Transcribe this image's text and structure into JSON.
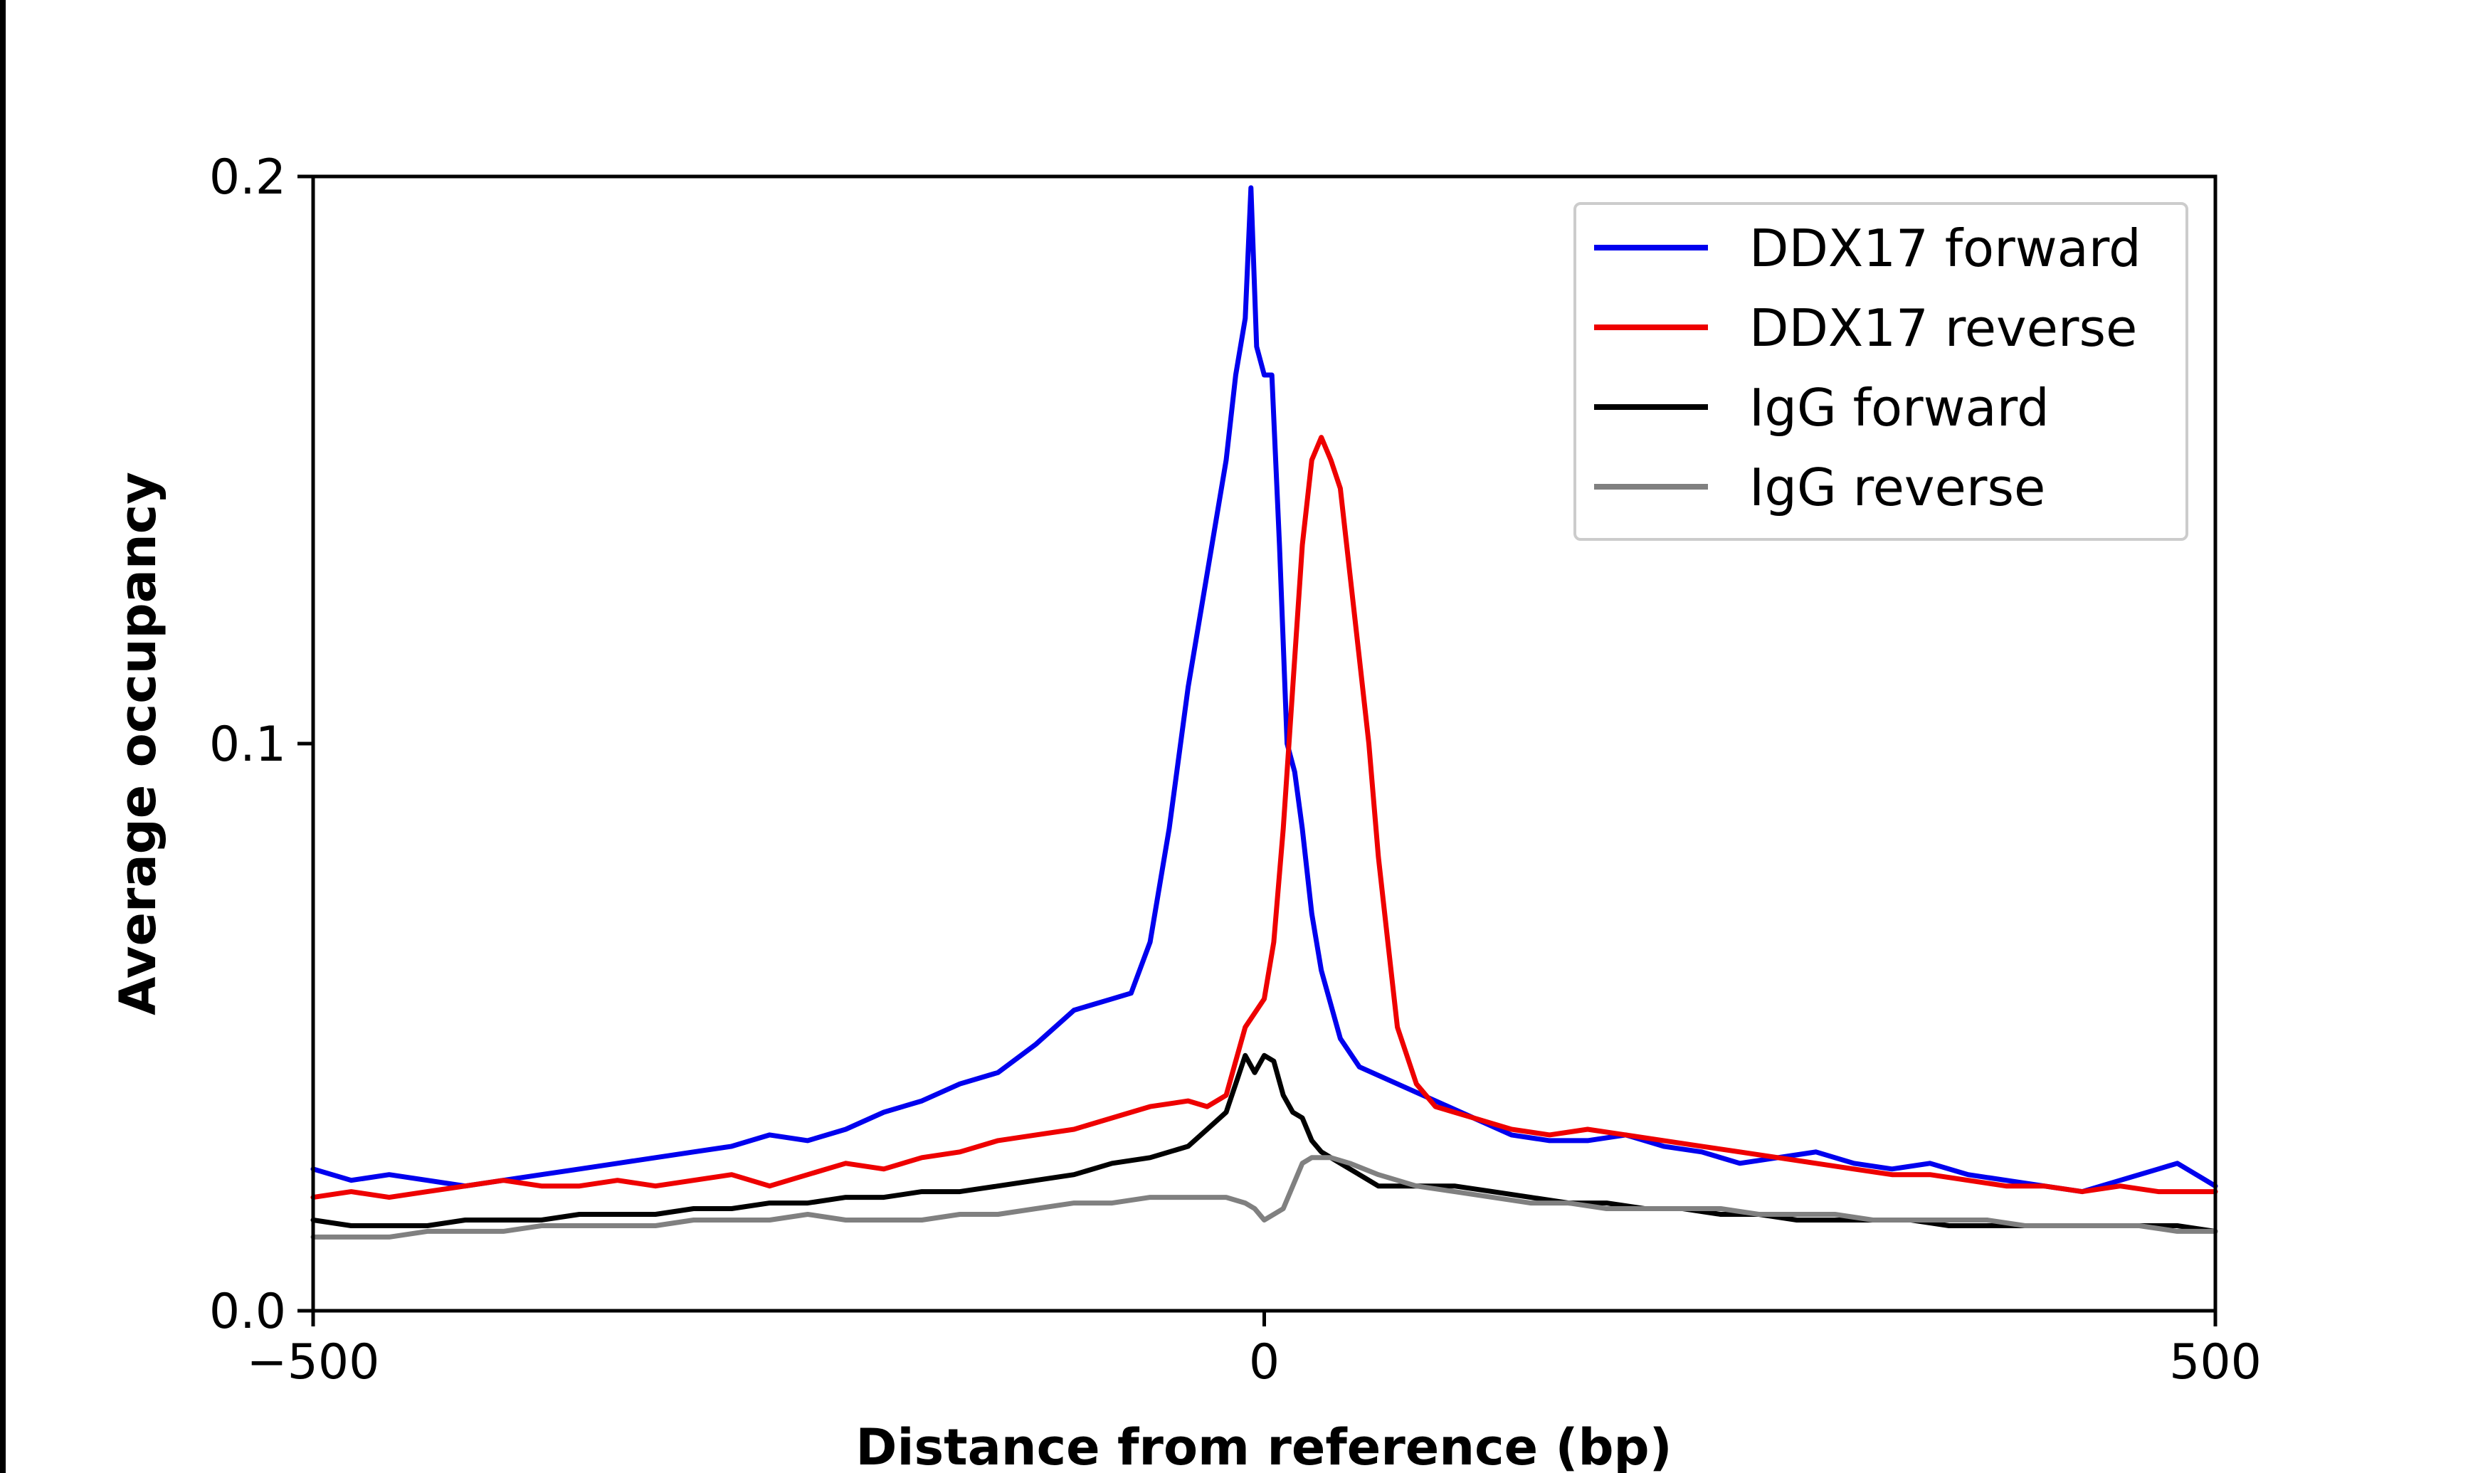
{
  "chart_data": {
    "type": "line",
    "xlabel": "Distance from reference (bp)",
    "ylabel": "Average occupancy",
    "xlim": [
      -500,
      500
    ],
    "ylim": [
      0,
      0.2
    ],
    "xticks": [
      -500,
      0,
      500
    ],
    "xtick_labels": [
      "−500",
      "0",
      "500"
    ],
    "yticks": [
      0,
      0.1,
      0.2
    ],
    "ytick_labels": [
      "0.0",
      "0.1",
      "0.2"
    ],
    "grid": false,
    "legend_position": "top-right",
    "series": [
      {
        "name": "DDX17 forward",
        "color": "#0000ee",
        "points": [
          [
            -500,
            0.025
          ],
          [
            -480,
            0.023
          ],
          [
            -460,
            0.024
          ],
          [
            -440,
            0.023
          ],
          [
            -420,
            0.022
          ],
          [
            -400,
            0.023
          ],
          [
            -380,
            0.024
          ],
          [
            -360,
            0.025
          ],
          [
            -340,
            0.026
          ],
          [
            -320,
            0.027
          ],
          [
            -300,
            0.028
          ],
          [
            -280,
            0.029
          ],
          [
            -260,
            0.031
          ],
          [
            -240,
            0.03
          ],
          [
            -220,
            0.032
          ],
          [
            -200,
            0.035
          ],
          [
            -180,
            0.037
          ],
          [
            -160,
            0.04
          ],
          [
            -140,
            0.042
          ],
          [
            -120,
            0.047
          ],
          [
            -100,
            0.053
          ],
          [
            -80,
            0.055
          ],
          [
            -70,
            0.056
          ],
          [
            -60,
            0.065
          ],
          [
            -50,
            0.085
          ],
          [
            -40,
            0.11
          ],
          [
            -30,
            0.13
          ],
          [
            -20,
            0.15
          ],
          [
            -15,
            0.165
          ],
          [
            -10,
            0.175
          ],
          [
            -7,
            0.198
          ],
          [
            -4,
            0.17
          ],
          [
            0,
            0.165
          ],
          [
            4,
            0.165
          ],
          [
            8,
            0.135
          ],
          [
            12,
            0.1
          ],
          [
            16,
            0.095
          ],
          [
            20,
            0.085
          ],
          [
            25,
            0.07
          ],
          [
            30,
            0.06
          ],
          [
            40,
            0.048
          ],
          [
            50,
            0.043
          ],
          [
            70,
            0.04
          ],
          [
            90,
            0.037
          ],
          [
            110,
            0.034
          ],
          [
            130,
            0.031
          ],
          [
            150,
            0.03
          ],
          [
            170,
            0.03
          ],
          [
            190,
            0.031
          ],
          [
            210,
            0.029
          ],
          [
            230,
            0.028
          ],
          [
            250,
            0.026
          ],
          [
            270,
            0.027
          ],
          [
            290,
            0.028
          ],
          [
            310,
            0.026
          ],
          [
            330,
            0.025
          ],
          [
            350,
            0.026
          ],
          [
            370,
            0.024
          ],
          [
            390,
            0.023
          ],
          [
            410,
            0.022
          ],
          [
            430,
            0.021
          ],
          [
            450,
            0.023
          ],
          [
            470,
            0.025
          ],
          [
            480,
            0.026
          ],
          [
            490,
            0.024
          ],
          [
            500,
            0.022
          ]
        ]
      },
      {
        "name": "DDX17 reverse",
        "color": "#ee0000",
        "points": [
          [
            -500,
            0.02
          ],
          [
            -480,
            0.021
          ],
          [
            -460,
            0.02
          ],
          [
            -440,
            0.021
          ],
          [
            -420,
            0.022
          ],
          [
            -400,
            0.023
          ],
          [
            -380,
            0.022
          ],
          [
            -360,
            0.022
          ],
          [
            -340,
            0.023
          ],
          [
            -320,
            0.022
          ],
          [
            -300,
            0.023
          ],
          [
            -280,
            0.024
          ],
          [
            -260,
            0.022
          ],
          [
            -240,
            0.024
          ],
          [
            -220,
            0.026
          ],
          [
            -200,
            0.025
          ],
          [
            -180,
            0.027
          ],
          [
            -160,
            0.028
          ],
          [
            -140,
            0.03
          ],
          [
            -120,
            0.031
          ],
          [
            -100,
            0.032
          ],
          [
            -80,
            0.034
          ],
          [
            -60,
            0.036
          ],
          [
            -40,
            0.037
          ],
          [
            -30,
            0.036
          ],
          [
            -20,
            0.038
          ],
          [
            -10,
            0.05
          ],
          [
            0,
            0.055
          ],
          [
            5,
            0.065
          ],
          [
            10,
            0.085
          ],
          [
            15,
            0.11
          ],
          [
            20,
            0.135
          ],
          [
            25,
            0.15
          ],
          [
            30,
            0.154
          ],
          [
            35,
            0.15
          ],
          [
            40,
            0.145
          ],
          [
            45,
            0.13
          ],
          [
            50,
            0.115
          ],
          [
            55,
            0.1
          ],
          [
            60,
            0.08
          ],
          [
            65,
            0.065
          ],
          [
            70,
            0.05
          ],
          [
            80,
            0.04
          ],
          [
            90,
            0.036
          ],
          [
            110,
            0.034
          ],
          [
            130,
            0.032
          ],
          [
            150,
            0.031
          ],
          [
            170,
            0.032
          ],
          [
            190,
            0.031
          ],
          [
            210,
            0.03
          ],
          [
            230,
            0.029
          ],
          [
            250,
            0.028
          ],
          [
            270,
            0.027
          ],
          [
            290,
            0.026
          ],
          [
            310,
            0.025
          ],
          [
            330,
            0.024
          ],
          [
            350,
            0.024
          ],
          [
            370,
            0.023
          ],
          [
            390,
            0.022
          ],
          [
            410,
            0.022
          ],
          [
            430,
            0.021
          ],
          [
            450,
            0.022
          ],
          [
            470,
            0.021
          ],
          [
            490,
            0.021
          ],
          [
            500,
            0.021
          ]
        ]
      },
      {
        "name": "IgG forward",
        "color": "#000000",
        "points": [
          [
            -500,
            0.016
          ],
          [
            -480,
            0.015
          ],
          [
            -460,
            0.015
          ],
          [
            -440,
            0.015
          ],
          [
            -420,
            0.016
          ],
          [
            -400,
            0.016
          ],
          [
            -380,
            0.016
          ],
          [
            -360,
            0.017
          ],
          [
            -340,
            0.017
          ],
          [
            -320,
            0.017
          ],
          [
            -300,
            0.018
          ],
          [
            -280,
            0.018
          ],
          [
            -260,
            0.019
          ],
          [
            -240,
            0.019
          ],
          [
            -220,
            0.02
          ],
          [
            -200,
            0.02
          ],
          [
            -180,
            0.021
          ],
          [
            -160,
            0.021
          ],
          [
            -140,
            0.022
          ],
          [
            -120,
            0.023
          ],
          [
            -100,
            0.024
          ],
          [
            -80,
            0.026
          ],
          [
            -60,
            0.027
          ],
          [
            -40,
            0.029
          ],
          [
            -30,
            0.032
          ],
          [
            -20,
            0.035
          ],
          [
            -15,
            0.04
          ],
          [
            -10,
            0.045
          ],
          [
            -5,
            0.042
          ],
          [
            0,
            0.045
          ],
          [
            5,
            0.044
          ],
          [
            10,
            0.038
          ],
          [
            15,
            0.035
          ],
          [
            20,
            0.034
          ],
          [
            25,
            0.03
          ],
          [
            30,
            0.028
          ],
          [
            40,
            0.026
          ],
          [
            50,
            0.024
          ],
          [
            60,
            0.022
          ],
          [
            80,
            0.022
          ],
          [
            100,
            0.022
          ],
          [
            120,
            0.021
          ],
          [
            140,
            0.02
          ],
          [
            160,
            0.019
          ],
          [
            180,
            0.019
          ],
          [
            200,
            0.018
          ],
          [
            220,
            0.018
          ],
          [
            240,
            0.017
          ],
          [
            260,
            0.017
          ],
          [
            280,
            0.016
          ],
          [
            300,
            0.016
          ],
          [
            320,
            0.016
          ],
          [
            340,
            0.016
          ],
          [
            360,
            0.015
          ],
          [
            380,
            0.015
          ],
          [
            400,
            0.015
          ],
          [
            420,
            0.015
          ],
          [
            440,
            0.015
          ],
          [
            460,
            0.015
          ],
          [
            480,
            0.015
          ],
          [
            500,
            0.014
          ]
        ]
      },
      {
        "name": "IgG reverse",
        "color": "#808080",
        "points": [
          [
            -500,
            0.013
          ],
          [
            -480,
            0.013
          ],
          [
            -460,
            0.013
          ],
          [
            -440,
            0.014
          ],
          [
            -420,
            0.014
          ],
          [
            -400,
            0.014
          ],
          [
            -380,
            0.015
          ],
          [
            -360,
            0.015
          ],
          [
            -340,
            0.015
          ],
          [
            -320,
            0.015
          ],
          [
            -300,
            0.016
          ],
          [
            -280,
            0.016
          ],
          [
            -260,
            0.016
          ],
          [
            -240,
            0.017
          ],
          [
            -220,
            0.016
          ],
          [
            -200,
            0.016
          ],
          [
            -180,
            0.016
          ],
          [
            -160,
            0.017
          ],
          [
            -140,
            0.017
          ],
          [
            -120,
            0.018
          ],
          [
            -100,
            0.019
          ],
          [
            -80,
            0.019
          ],
          [
            -60,
            0.02
          ],
          [
            -40,
            0.02
          ],
          [
            -20,
            0.02
          ],
          [
            -10,
            0.019
          ],
          [
            -5,
            0.018
          ],
          [
            0,
            0.016
          ],
          [
            5,
            0.017
          ],
          [
            10,
            0.018
          ],
          [
            15,
            0.022
          ],
          [
            20,
            0.026
          ],
          [
            25,
            0.027
          ],
          [
            35,
            0.027
          ],
          [
            45,
            0.026
          ],
          [
            60,
            0.024
          ],
          [
            80,
            0.022
          ],
          [
            100,
            0.021
          ],
          [
            120,
            0.02
          ],
          [
            140,
            0.019
          ],
          [
            160,
            0.019
          ],
          [
            180,
            0.018
          ],
          [
            200,
            0.018
          ],
          [
            220,
            0.018
          ],
          [
            240,
            0.018
          ],
          [
            260,
            0.017
          ],
          [
            280,
            0.017
          ],
          [
            300,
            0.017
          ],
          [
            320,
            0.016
          ],
          [
            340,
            0.016
          ],
          [
            360,
            0.016
          ],
          [
            380,
            0.016
          ],
          [
            400,
            0.015
          ],
          [
            420,
            0.015
          ],
          [
            440,
            0.015
          ],
          [
            460,
            0.015
          ],
          [
            480,
            0.014
          ],
          [
            500,
            0.014
          ]
        ]
      }
    ]
  }
}
